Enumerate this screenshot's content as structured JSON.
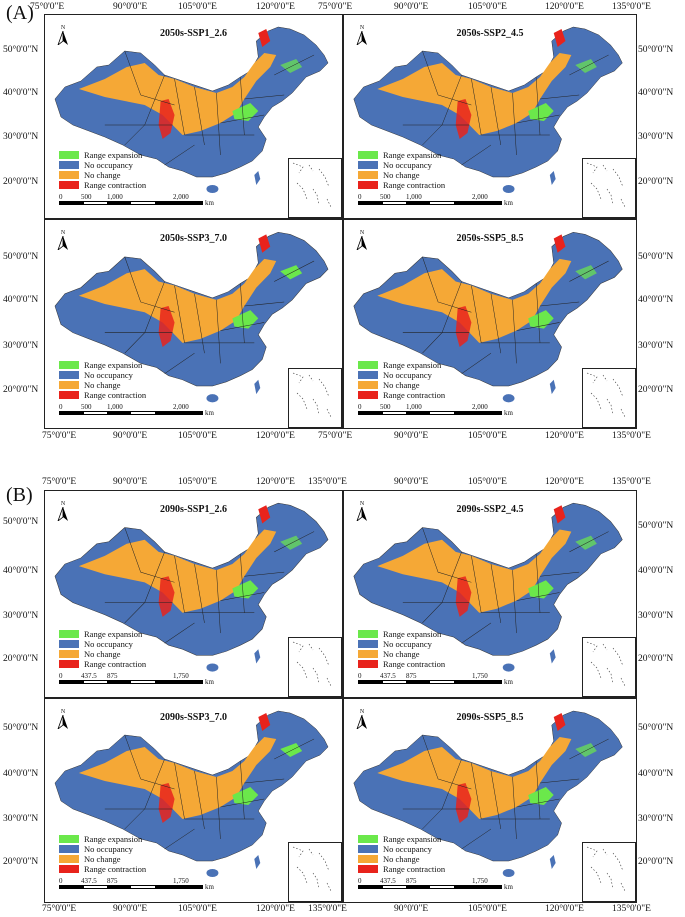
{
  "sections": [
    {
      "label": "(A)",
      "scale_ticks": [
        "0",
        "500",
        "1,000",
        "2,000"
      ],
      "panels": [
        {
          "title": "2050s-SSP1_2.6"
        },
        {
          "title": "2050s-SSP2_4.5"
        },
        {
          "title": "2050s-SSP3_7.0"
        },
        {
          "title": "2050s-SSP5_8.5"
        }
      ]
    },
    {
      "label": "(B)",
      "scale_ticks": [
        "0",
        "437.5",
        "875",
        "1,750"
      ],
      "panels": [
        {
          "title": "2090s-SSP1_2.6"
        },
        {
          "title": "2090s-SSP2_4.5"
        },
        {
          "title": "2090s-SSP3_7.0"
        },
        {
          "title": "2090s-SSP5_8.5"
        }
      ]
    }
  ],
  "longitudes": [
    "75°0'0\"E",
    "90°0'0\"E",
    "105°0'0\"E",
    "120°0'0\"E",
    "135°0'0\"E"
  ],
  "latitudes": [
    "50°0'0\"N",
    "40°0'0\"N",
    "30°0'0\"N",
    "20°0'0\"N"
  ],
  "legend": [
    {
      "label": "Range expansion",
      "color": "#6be84b"
    },
    {
      "label": "No occupancy",
      "color": "#4a72b6"
    },
    {
      "label": "No change",
      "color": "#f5a836"
    },
    {
      "label": "Range contraction",
      "color": "#e8231c"
    }
  ],
  "north_label": "N",
  "scale_unit": "km"
}
